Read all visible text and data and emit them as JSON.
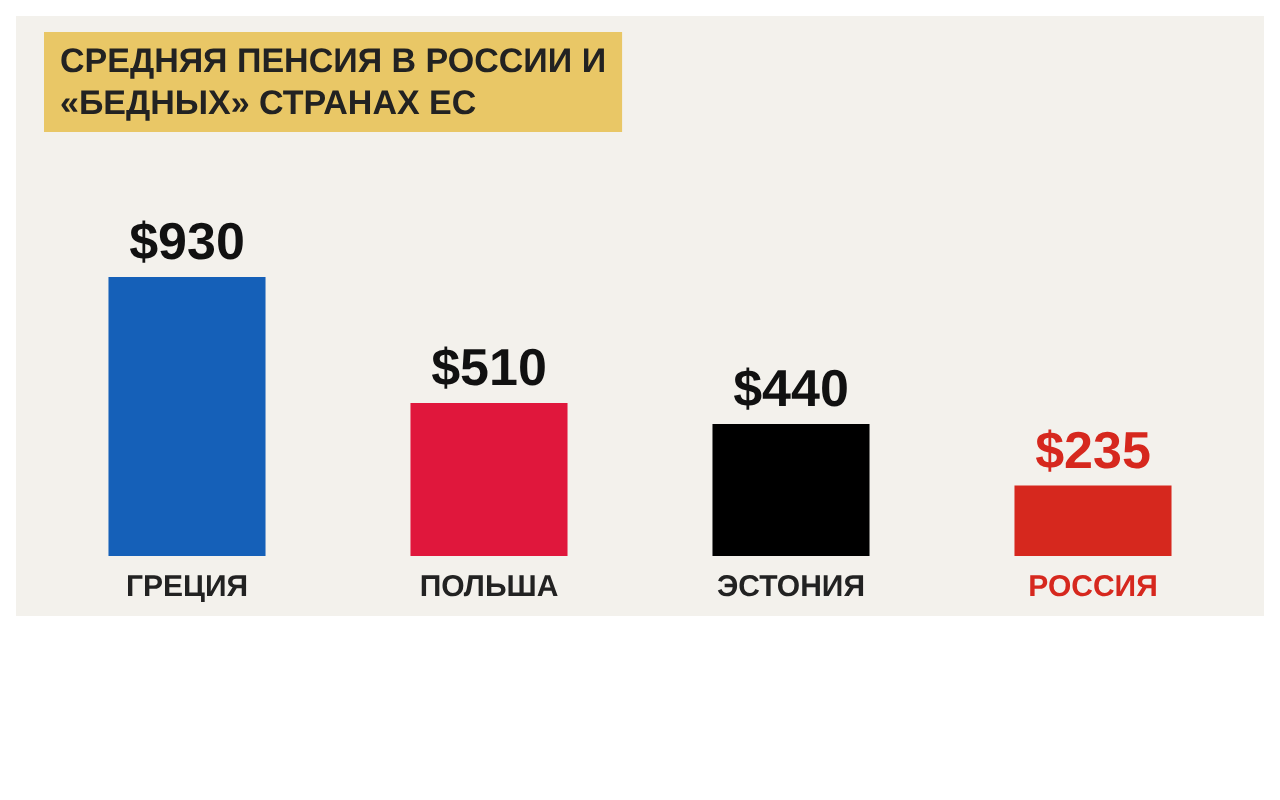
{
  "chart_data": {
    "type": "bar",
    "title": "СРЕДНЯЯ ПЕНСИЯ В РОССИИ И\n«БЕДНЫХ» СТРАНАХ ЕС",
    "categories": [
      "ГРЕЦИЯ",
      "ПОЛЬША",
      "ЭСТОНИЯ",
      "РОССИЯ"
    ],
    "values": [
      930,
      510,
      440,
      235
    ],
    "colors": [
      "#1560b8",
      "#e0173c",
      "#000000",
      "#d6281e"
    ],
    "value_labels": [
      "$930",
      "$510",
      "$440",
      "$235"
    ]
  }
}
